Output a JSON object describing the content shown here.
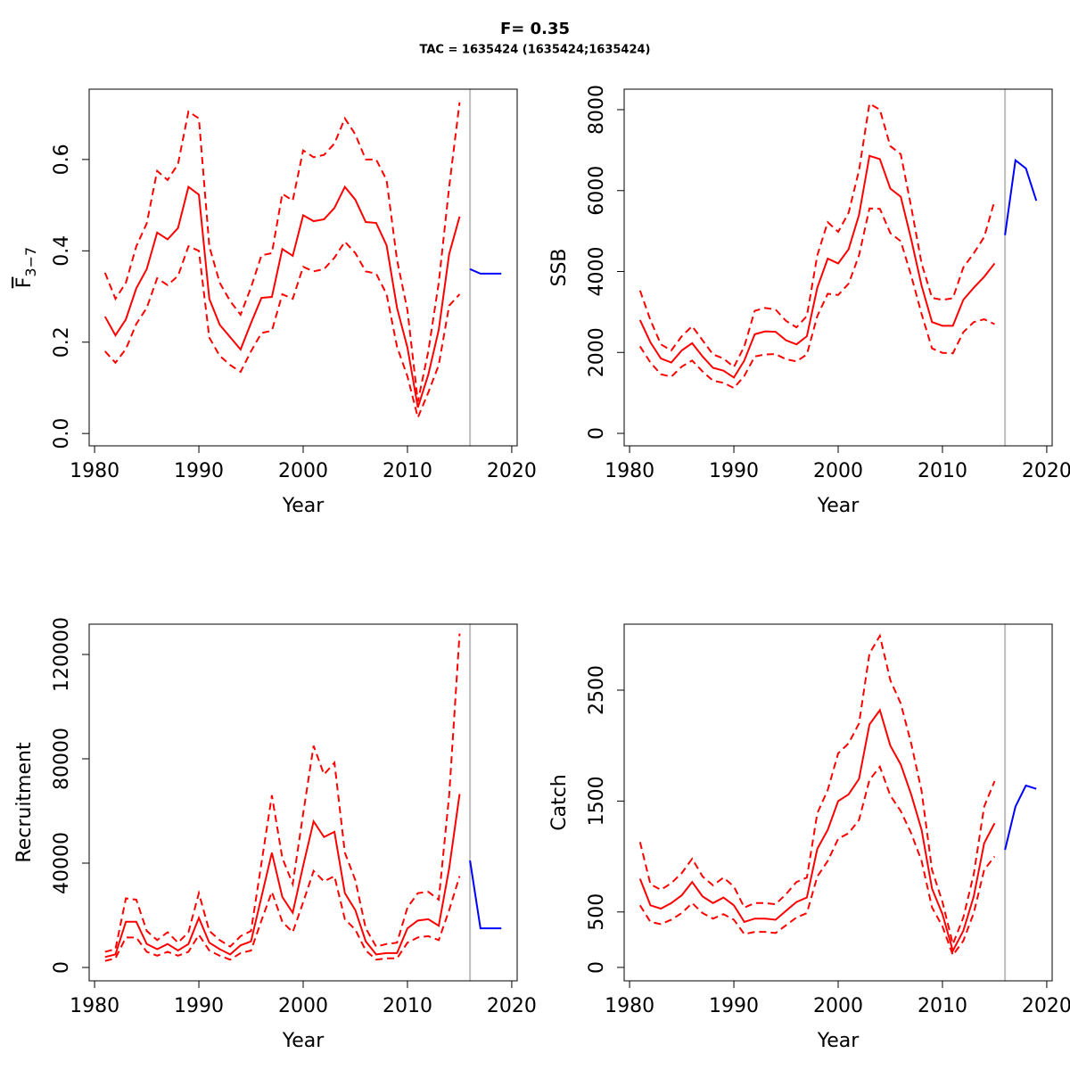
{
  "header": {
    "title": "F= 0.35",
    "subtitle": "TAC = 1635424 (1635424;1635424)"
  },
  "chart_data": [
    {
      "type": "line",
      "ylabel": "F",
      "ylabel_sub": "3−7",
      "xlabel": "Year",
      "xlim": [
        1979.48,
        2020.52
      ],
      "xticks": [
        1980,
        1990,
        2000,
        2010,
        2020
      ],
      "ylim": [
        -0.027,
        0.754
      ],
      "yticks": [
        {
          "value": 0,
          "label": "0.0"
        },
        0.2,
        0.4,
        0.6
      ],
      "vline": 2016,
      "vline_color": "#bebebe",
      "series": [
        {
          "color": "#ff0000",
          "dashed": false,
          "x": [
            1981,
            1982,
            1983,
            1984,
            1985,
            1986,
            1987,
            1988,
            1989,
            1990,
            1991,
            1992,
            1993,
            1994,
            1995,
            1996,
            1997,
            1998,
            1999,
            2000,
            2001,
            2002,
            2003,
            2004,
            2005,
            2006,
            2007,
            2008,
            2009,
            2010,
            2011,
            2012,
            2013,
            2014,
            2015
          ],
          "values": [
            0.256,
            0.215,
            0.25,
            0.318,
            0.36,
            0.44,
            0.425,
            0.45,
            0.54,
            0.523,
            0.295,
            0.238,
            0.211,
            0.184,
            0.242,
            0.297,
            0.299,
            0.404,
            0.389,
            0.478,
            0.465,
            0.469,
            0.494,
            0.54,
            0.512,
            0.463,
            0.461,
            0.412,
            0.275,
            0.188,
            0.057,
            0.129,
            0.227,
            0.393,
            0.475
          ]
        },
        {
          "color": "#ff0000",
          "dashed": true,
          "x": [
            1981,
            1982,
            1983,
            1984,
            1985,
            1986,
            1987,
            1988,
            1989,
            1990,
            1991,
            1992,
            1993,
            1994,
            1995,
            1996,
            1997,
            1998,
            1999,
            2000,
            2001,
            2002,
            2003,
            2004,
            2005,
            2006,
            2007,
            2008,
            2009,
            2010,
            2011,
            2012,
            2013,
            2014,
            2015
          ],
          "values": [
            0.352,
            0.295,
            0.33,
            0.41,
            0.46,
            0.575,
            0.555,
            0.59,
            0.705,
            0.69,
            0.41,
            0.33,
            0.29,
            0.26,
            0.32,
            0.39,
            0.395,
            0.525,
            0.51,
            0.62,
            0.605,
            0.61,
            0.635,
            0.69,
            0.655,
            0.6,
            0.6,
            0.555,
            0.38,
            0.27,
            0.07,
            0.18,
            0.33,
            0.54,
            0.725
          ]
        },
        {
          "color": "#ff0000",
          "dashed": true,
          "x": [
            1981,
            1982,
            1983,
            1984,
            1985,
            1986,
            1987,
            1988,
            1989,
            1990,
            1991,
            1992,
            1993,
            1994,
            1995,
            1996,
            1997,
            1998,
            1999,
            2000,
            2001,
            2002,
            2003,
            2004,
            2005,
            2006,
            2007,
            2008,
            2009,
            2010,
            2011,
            2012,
            2013,
            2014,
            2015
          ],
          "values": [
            0.18,
            0.155,
            0.185,
            0.24,
            0.275,
            0.34,
            0.325,
            0.345,
            0.41,
            0.4,
            0.21,
            0.17,
            0.15,
            0.135,
            0.18,
            0.22,
            0.225,
            0.305,
            0.295,
            0.365,
            0.355,
            0.36,
            0.385,
            0.42,
            0.395,
            0.355,
            0.35,
            0.305,
            0.19,
            0.125,
            0.035,
            0.09,
            0.15,
            0.28,
            0.305
          ]
        },
        {
          "color": "#0000ff",
          "dashed": false,
          "x": [
            2016,
            2017,
            2018,
            2019
          ],
          "values": [
            0.36,
            0.35,
            0.35,
            0.35
          ]
        }
      ]
    },
    {
      "type": "line",
      "ylabel": "SSB",
      "xlabel": "Year",
      "xlim": [
        1979.48,
        2020.52
      ],
      "xticks": [
        1980,
        1990,
        2000,
        2010,
        2020
      ],
      "ylim": [
        -308,
        8507
      ],
      "yticks": [
        0,
        2000,
        4000,
        6000,
        8000
      ],
      "vline": 2016,
      "vline_color": "#bebebe",
      "series": [
        {
          "color": "#ff0000",
          "dashed": false,
          "x": [
            1981,
            1982,
            1983,
            1984,
            1985,
            1986,
            1987,
            1988,
            1989,
            1990,
            1991,
            1992,
            1993,
            1994,
            1995,
            1996,
            1997,
            1998,
            1999,
            2000,
            2001,
            2002,
            2003,
            2004,
            2005,
            2006,
            2007,
            2008,
            2009,
            2010,
            2011,
            2012,
            2013,
            2014,
            2015
          ],
          "values": [
            2800,
            2250,
            1850,
            1750,
            2050,
            2230,
            1900,
            1620,
            1550,
            1380,
            1800,
            2450,
            2520,
            2510,
            2300,
            2200,
            2400,
            3600,
            4320,
            4200,
            4550,
            5400,
            6860,
            6780,
            6050,
            5850,
            4800,
            3650,
            2750,
            2660,
            2660,
            3300,
            3600,
            3870,
            4200
          ]
        },
        {
          "color": "#ff0000",
          "dashed": true,
          "x": [
            1981,
            1982,
            1983,
            1984,
            1985,
            1986,
            1987,
            1988,
            1989,
            1990,
            1991,
            1992,
            1993,
            1994,
            1995,
            1996,
            1997,
            1998,
            1999,
            2000,
            2001,
            2002,
            2003,
            2004,
            2005,
            2006,
            2007,
            2008,
            2009,
            2010,
            2011,
            2012,
            2013,
            2014,
            2015
          ],
          "values": [
            3530,
            2800,
            2200,
            2050,
            2400,
            2650,
            2300,
            1950,
            1850,
            1640,
            2150,
            3030,
            3100,
            3060,
            2780,
            2620,
            2900,
            4400,
            5220,
            4980,
            5450,
            6500,
            8150,
            8000,
            7100,
            6900,
            5600,
            4200,
            3350,
            3300,
            3340,
            4100,
            4450,
            4850,
            5750
          ]
        },
        {
          "color": "#ff0000",
          "dashed": true,
          "x": [
            1981,
            1982,
            1983,
            1984,
            1985,
            1986,
            1987,
            1988,
            1989,
            1990,
            1991,
            1992,
            1993,
            1994,
            1995,
            1996,
            1997,
            1998,
            1999,
            2000,
            2001,
            2002,
            2003,
            2004,
            2005,
            2006,
            2007,
            2008,
            2009,
            2010,
            2011,
            2012,
            2013,
            2014,
            2015
          ],
          "values": [
            2150,
            1750,
            1460,
            1400,
            1650,
            1800,
            1530,
            1300,
            1250,
            1120,
            1420,
            1900,
            1950,
            1960,
            1830,
            1780,
            1950,
            2900,
            3450,
            3420,
            3700,
            4400,
            5560,
            5550,
            4950,
            4750,
            3900,
            2950,
            2100,
            1990,
            1980,
            2500,
            2750,
            2820,
            2700
          ]
        },
        {
          "color": "#0000ff",
          "dashed": false,
          "x": [
            2016,
            2017,
            2018,
            2019
          ],
          "values": [
            4900,
            6750,
            6550,
            5750
          ]
        }
      ]
    },
    {
      "type": "line",
      "ylabel": "Recruitment",
      "xlabel": "Year",
      "xlim": [
        1979.48,
        2020.52
      ],
      "xticks": [
        1980,
        1990,
        2000,
        2010,
        2020
      ],
      "ylim": [
        -5128,
        131624
      ],
      "yticks": [
        0,
        40000,
        80000,
        120000
      ],
      "vline": 2016,
      "vline_color": "#bebebe",
      "series": [
        {
          "color": "#ff0000",
          "dashed": false,
          "x": [
            1981,
            1982,
            1983,
            1984,
            1985,
            1986,
            1987,
            1988,
            1989,
            1990,
            1991,
            1992,
            1993,
            1994,
            1995,
            1996,
            1997,
            1998,
            1999,
            2000,
            2001,
            2002,
            2003,
            2004,
            2005,
            2006,
            2007,
            2008,
            2009,
            2010,
            2011,
            2012,
            2013,
            2014,
            2015
          ],
          "values": [
            4000,
            5000,
            17500,
            17500,
            9000,
            7000,
            9000,
            6500,
            9000,
            19000,
            9500,
            7000,
            5000,
            8500,
            10000,
            27000,
            44000,
            27000,
            21000,
            39000,
            56000,
            50000,
            52000,
            28500,
            22000,
            10000,
            5000,
            5500,
            5500,
            15000,
            18000,
            18500,
            16000,
            38000,
            66500
          ]
        },
        {
          "color": "#ff0000",
          "dashed": true,
          "x": [
            1981,
            1982,
            1983,
            1984,
            1985,
            1986,
            1987,
            1988,
            1989,
            1990,
            1991,
            1992,
            1993,
            1994,
            1995,
            1996,
            1997,
            1998,
            1999,
            2000,
            2001,
            2002,
            2003,
            2004,
            2005,
            2006,
            2007,
            2008,
            2009,
            2010,
            2011,
            2012,
            2013,
            2014,
            2015
          ],
          "values": [
            6000,
            7000,
            26500,
            26000,
            14000,
            10500,
            13500,
            9500,
            13500,
            28500,
            14000,
            10500,
            8000,
            12000,
            14000,
            40000,
            66000,
            42000,
            32000,
            59000,
            85000,
            74000,
            78500,
            44000,
            33500,
            15000,
            8000,
            9000,
            9500,
            23000,
            28500,
            29000,
            26000,
            66000,
            128000
          ]
        },
        {
          "color": "#ff0000",
          "dashed": true,
          "x": [
            1981,
            1982,
            1983,
            1984,
            1985,
            1986,
            1987,
            1988,
            1989,
            1990,
            1991,
            1992,
            1993,
            1994,
            1995,
            1996,
            1997,
            1998,
            1999,
            2000,
            2001,
            2002,
            2003,
            2004,
            2005,
            2006,
            2007,
            2008,
            2009,
            2010,
            2011,
            2012,
            2013,
            2014,
            2015
          ],
          "values": [
            2500,
            3500,
            11500,
            11500,
            6000,
            4500,
            6000,
            4500,
            6000,
            12500,
            6500,
            4500,
            3000,
            5500,
            6500,
            18000,
            29000,
            17500,
            13500,
            25000,
            37000,
            33000,
            35000,
            18500,
            14500,
            6500,
            3000,
            3500,
            3500,
            9500,
            11500,
            12000,
            10500,
            22000,
            35000
          ]
        },
        {
          "color": "#0000ff",
          "dashed": false,
          "x": [
            2016,
            2017,
            2018,
            2019
          ],
          "values": [
            41000,
            15000,
            15000,
            15000
          ]
        }
      ]
    },
    {
      "type": "line",
      "ylabel": "Catch",
      "xlabel": "Year",
      "xlim": [
        1979.48,
        2020.52
      ],
      "xticks": [
        1980,
        1990,
        2000,
        2010,
        2020
      ],
      "ylim": [
        -121,
        3095
      ],
      "yticks": [
        0,
        500,
        1500,
        2500
      ],
      "vline": 2016,
      "vline_color": "#bebebe",
      "series": [
        {
          "color": "#ff0000",
          "dashed": false,
          "x": [
            1981,
            1982,
            1983,
            1984,
            1985,
            1986,
            1987,
            1988,
            1989,
            1990,
            1991,
            1992,
            1993,
            1994,
            1995,
            1996,
            1997,
            1998,
            1999,
            2000,
            2001,
            2002,
            2003,
            2004,
            2005,
            2006,
            2007,
            2008,
            2009,
            2010,
            2011,
            2012,
            2013,
            2014,
            2015
          ],
          "values": [
            800,
            560,
            530,
            580,
            650,
            770,
            640,
            580,
            630,
            560,
            410,
            440,
            440,
            430,
            510,
            590,
            630,
            1070,
            1240,
            1500,
            1560,
            1700,
            2190,
            2320,
            2000,
            1830,
            1560,
            1240,
            710,
            480,
            150,
            330,
            640,
            1120,
            1300
          ]
        },
        {
          "color": "#ff0000",
          "dashed": true,
          "x": [
            1981,
            1982,
            1983,
            1984,
            1985,
            1986,
            1987,
            1988,
            1989,
            1990,
            1991,
            1992,
            1993,
            1994,
            1995,
            1996,
            1997,
            1998,
            1999,
            2000,
            2001,
            2002,
            2003,
            2004,
            2005,
            2006,
            2007,
            2008,
            2009,
            2010,
            2011,
            2012,
            2013,
            2014,
            2015
          ],
          "values": [
            1130,
            750,
            700,
            760,
            850,
            980,
            820,
            740,
            810,
            730,
            540,
            580,
            580,
            570,
            660,
            770,
            810,
            1390,
            1600,
            1930,
            2020,
            2200,
            2830,
            2990,
            2590,
            2380,
            2020,
            1590,
            880,
            590,
            210,
            450,
            840,
            1450,
            1680
          ]
        },
        {
          "color": "#ff0000",
          "dashed": true,
          "x": [
            1981,
            1982,
            1983,
            1984,
            1985,
            1986,
            1987,
            1988,
            1989,
            1990,
            1991,
            1992,
            1993,
            1994,
            1995,
            1996,
            1997,
            1998,
            1999,
            2000,
            2001,
            2002,
            2003,
            2004,
            2005,
            2006,
            2007,
            2008,
            2009,
            2010,
            2011,
            2012,
            2013,
            2014,
            2015
          ],
          "values": [
            560,
            410,
            390,
            430,
            490,
            580,
            490,
            440,
            480,
            430,
            300,
            320,
            320,
            310,
            380,
            450,
            490,
            820,
            960,
            1160,
            1210,
            1330,
            1690,
            1810,
            1550,
            1410,
            1210,
            960,
            540,
            370,
            110,
            240,
            490,
            880,
            1000
          ]
        },
        {
          "color": "#0000ff",
          "dashed": false,
          "x": [
            2016,
            2017,
            2018,
            2019
          ],
          "values": [
            1060,
            1450,
            1640,
            1610
          ]
        }
      ]
    }
  ]
}
